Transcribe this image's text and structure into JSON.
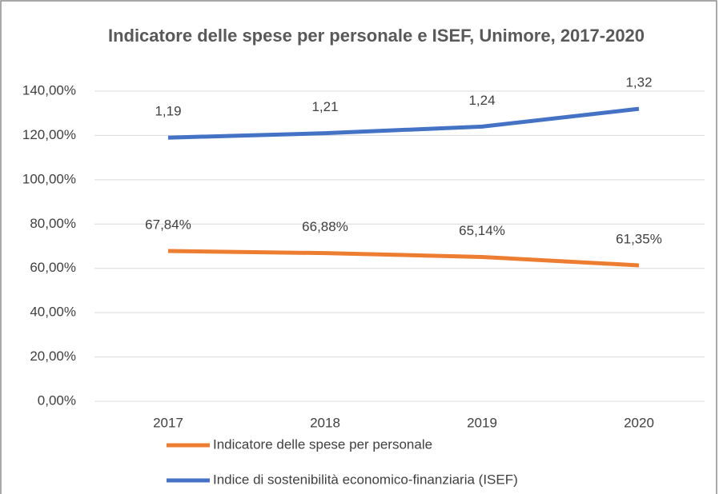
{
  "chart_data": {
    "type": "line",
    "title": "Indicatore delle spese per personale e ISEF, Unimore, 2017-2020",
    "categories": [
      "2017",
      "2018",
      "2019",
      "2020"
    ],
    "series": [
      {
        "name": "Indicatore delle spese per personale",
        "color": "#ed7d31",
        "values": [
          67.84,
          66.88,
          65.14,
          61.35
        ],
        "value_labels": [
          "67,84%",
          "66,88%",
          "65,14%",
          "61,35%"
        ]
      },
      {
        "name": "Indice di sostenibilità economico-finanziaria (ISEF)",
        "color": "#4472c4",
        "values": [
          119,
          121,
          124,
          132
        ],
        "value_labels": [
          "1,19",
          "1,21",
          "1,24",
          "1,32"
        ]
      }
    ],
    "ylim": [
      0,
      140
    ],
    "yticks": [
      {
        "value": 0,
        "label": "0,00%"
      },
      {
        "value": 20,
        "label": "20,00%"
      },
      {
        "value": 40,
        "label": "40,00%"
      },
      {
        "value": 60,
        "label": "60,00%"
      },
      {
        "value": 80,
        "label": "80,00%"
      },
      {
        "value": 100,
        "label": "100,00%"
      },
      {
        "value": 120,
        "label": "120,00%"
      },
      {
        "value": 140,
        "label": "140,00%"
      }
    ],
    "grid": true,
    "legend": "bottom"
  }
}
